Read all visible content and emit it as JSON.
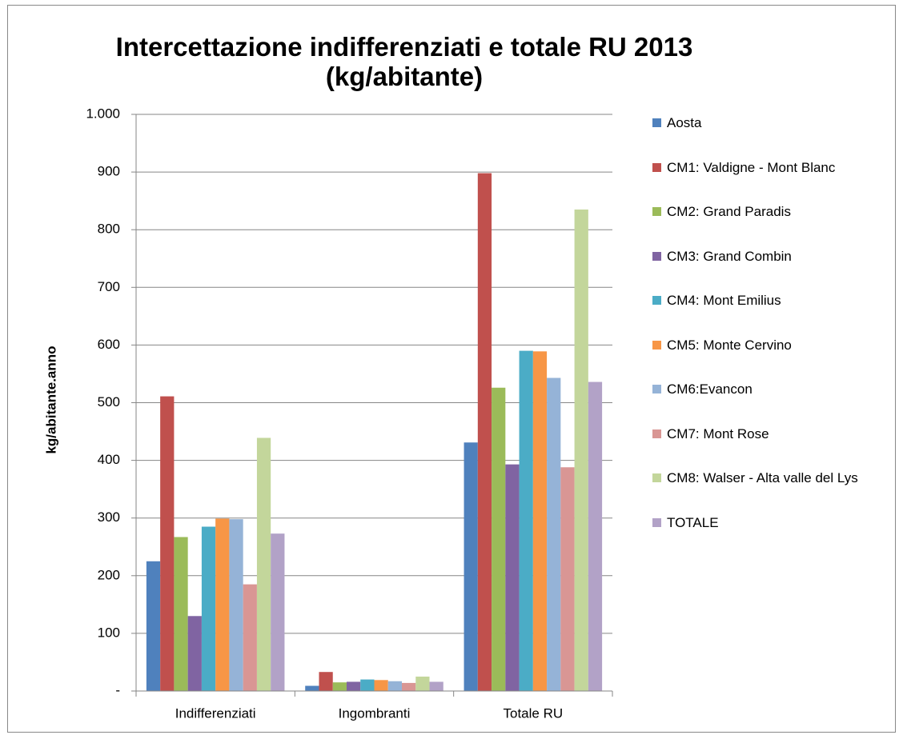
{
  "chart_data": {
    "type": "bar",
    "title": "Intercettazione indifferenziati e totale RU 2013 (kg/abitante)",
    "y_label": "kg/abitante.anno",
    "categories": [
      "Indifferenziati",
      "Ingombranti",
      "Totale RU"
    ],
    "series": [
      {
        "name": "Aosta",
        "color": "#4F81BD",
        "values": [
          225,
          9,
          431
        ]
      },
      {
        "name": "CM1: Valdigne - Mont Blanc",
        "color": "#C0504D",
        "values": [
          511,
          33,
          898
        ]
      },
      {
        "name": "CM2: Grand Paradis",
        "color": "#9BBB59",
        "values": [
          267,
          15,
          526
        ]
      },
      {
        "name": "CM3: Grand Combin",
        "color": "#8064A2",
        "values": [
          130,
          16,
          393
        ]
      },
      {
        "name": "CM4: Mont Emilius",
        "color": "#4BACC6",
        "values": [
          285,
          20,
          590
        ]
      },
      {
        "name": "CM5: Monte Cervino",
        "color": "#F79646",
        "values": [
          299,
          19,
          589
        ]
      },
      {
        "name": "CM6:Evancon",
        "color": "#95B3D7",
        "values": [
          298,
          17,
          543
        ]
      },
      {
        "name": "CM7: Mont Rose",
        "color": "#D99694",
        "values": [
          185,
          14,
          388
        ]
      },
      {
        "name": "CM8: Walser - Alta valle del Lys",
        "color": "#C3D69B",
        "values": [
          439,
          25,
          835
        ]
      },
      {
        "name": "TOTALE",
        "color": "#B2A2C7",
        "values": [
          273,
          16,
          536
        ]
      }
    ],
    "ylim": [
      0,
      1000
    ],
    "yticks": [
      {
        "value": 0,
        "label": "-"
      },
      100,
      200,
      300,
      400,
      500,
      600,
      700,
      800,
      900,
      {
        "value": 1000,
        "label": "1.000"
      }
    ],
    "grid": true,
    "legend": "right"
  }
}
